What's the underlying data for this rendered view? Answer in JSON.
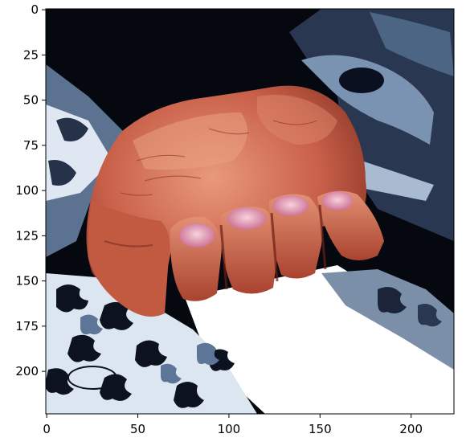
{
  "image": {
    "subject": "clenched fist over scattered jigsaw puzzle pieces",
    "palette": {
      "background_dark": "#06080f",
      "puzzle_blue": "#5d7697",
      "puzzle_light": "#d8e2ee",
      "puzzle_white": "#ffffff",
      "skin_mid": "#c96148",
      "skin_light": "#e08a69",
      "skin_shadow": "#7b2a1c",
      "nail_pink": "#e7a2bc"
    }
  },
  "axes": {
    "x_ticks": [
      "0",
      "50",
      "100",
      "150",
      "200"
    ],
    "x_values": [
      0,
      50,
      100,
      150,
      200
    ],
    "y_ticks": [
      "0",
      "25",
      "50",
      "75",
      "100",
      "125",
      "150",
      "175",
      "200"
    ],
    "y_values": [
      0,
      25,
      50,
      75,
      100,
      125,
      150,
      175,
      200
    ],
    "x_range": [
      -0.5,
      223.5
    ],
    "y_range": [
      223.5,
      -0.5
    ]
  }
}
